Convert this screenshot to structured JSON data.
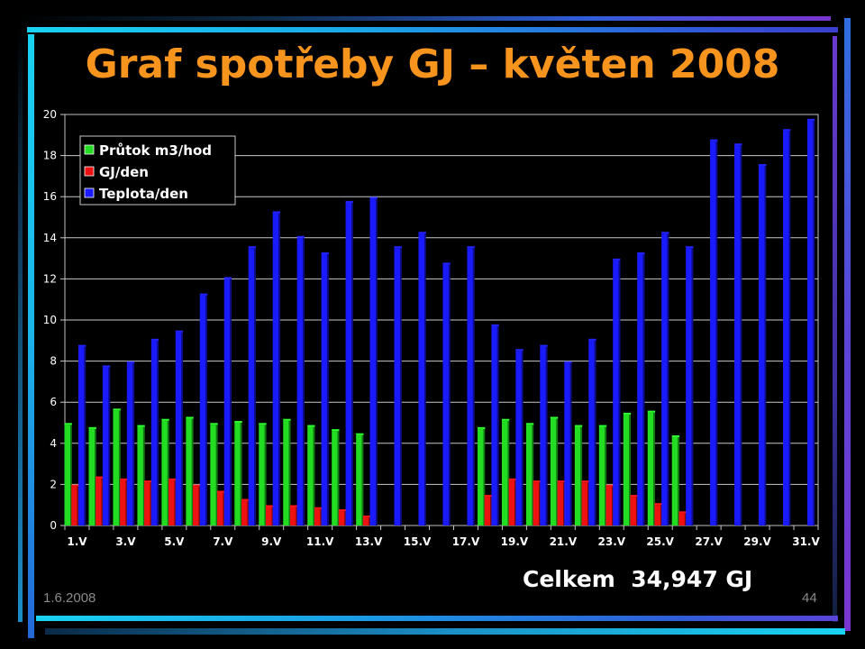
{
  "slide": {
    "title": "Graf spotřeby GJ – květen 2008",
    "total": "Celkem  34,947 GJ",
    "date": "1.6.2008",
    "page": "44"
  },
  "colors": {
    "title": "#f7941d",
    "green": "#22dd22",
    "red": "#ee1111",
    "blue": "#1a1aff",
    "decor_cyan": "#19d3f2",
    "decor_blue": "#2f5dd8",
    "decor_purple": "#7a35d0"
  },
  "chart_data": {
    "type": "bar",
    "title": "",
    "xlabel": "",
    "ylabel": "",
    "ylim": [
      0,
      20
    ],
    "yticks": [
      0,
      2,
      4,
      6,
      8,
      10,
      12,
      14,
      16,
      18,
      20
    ],
    "grid": true,
    "legend_position": "top-left",
    "categories": [
      "1.V",
      "2.V",
      "3.V",
      "4.V",
      "5.V",
      "6.V",
      "7.V",
      "8.V",
      "9.V",
      "10.V",
      "11.V",
      "12.V",
      "13.V",
      "14.V",
      "15.V",
      "16.V",
      "17.V",
      "18.V",
      "19.V",
      "20.V",
      "21.V",
      "22.V",
      "23.V",
      "24.V",
      "25.V",
      "26.V",
      "27.V",
      "28.V",
      "29.V",
      "30.V",
      "31.V"
    ],
    "category_labels": [
      "1.V",
      "",
      "3.V",
      "",
      "5.V",
      "",
      "7.V",
      "",
      "9.V",
      "",
      "11.V",
      "",
      "13.V",
      "",
      "15.V",
      "",
      "17.V",
      "",
      "19.V",
      "",
      "21.V",
      "",
      "23.V",
      "",
      "25.V",
      "",
      "27.V",
      "",
      "29.V",
      "",
      "31.V"
    ],
    "series": [
      {
        "name": "Průtok m3/hod",
        "color": "#22dd22",
        "values": [
          4.9,
          4.7,
          5.6,
          4.8,
          5.1,
          5.2,
          4.9,
          5.0,
          4.9,
          5.1,
          4.8,
          4.6,
          4.4,
          null,
          null,
          null,
          null,
          4.7,
          5.1,
          4.9,
          5.2,
          4.8,
          4.8,
          5.4,
          5.5,
          4.3,
          null,
          null,
          null,
          null,
          null
        ]
      },
      {
        "name": "GJ/den",
        "color": "#ee1111",
        "values": [
          1.9,
          2.3,
          2.2,
          2.1,
          2.2,
          1.9,
          1.6,
          1.2,
          0.9,
          0.9,
          0.8,
          0.7,
          0.4,
          null,
          null,
          null,
          null,
          1.4,
          2.2,
          2.1,
          2.1,
          2.1,
          1.9,
          1.4,
          1.0,
          0.6,
          null,
          null,
          null,
          null,
          null
        ]
      },
      {
        "name": "Teplota/den",
        "color": "#1a1aff",
        "values": [
          8.7,
          7.7,
          7.9,
          9.0,
          9.4,
          11.2,
          12.0,
          13.5,
          15.2,
          14.0,
          13.2,
          15.7,
          15.9,
          13.5,
          14.2,
          12.7,
          13.5,
          9.7,
          8.5,
          8.7,
          7.9,
          9.0,
          12.9,
          13.2,
          14.2,
          13.5,
          18.7,
          18.5,
          17.5,
          19.2,
          19.7
        ]
      }
    ]
  }
}
